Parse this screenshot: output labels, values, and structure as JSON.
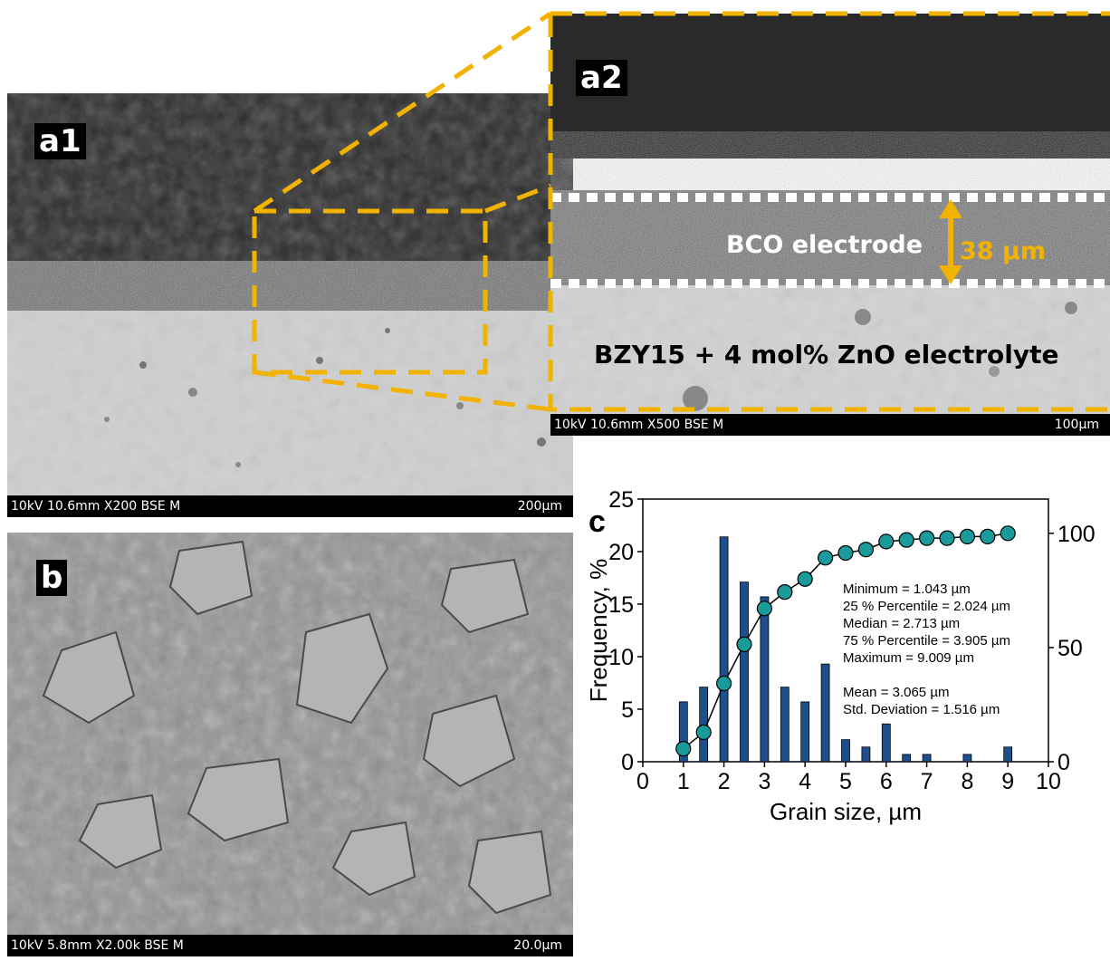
{
  "panel_a1": {
    "label": "a1",
    "info": "10kV 10.6mm X200 BSE M",
    "scale": "200µm"
  },
  "panel_a2": {
    "label": "a2",
    "info": "10kV 10.6mm X500 BSE M",
    "scale": "100µm",
    "electrode_label": "BCO electrode",
    "thickness_label": "38 µm",
    "electrolyte_label": "BZY15 + 4 mol% ZnO electrolyte"
  },
  "panel_b": {
    "label": "b",
    "info": "10kV 5.8mm X2.00k BSE M",
    "scale": "20.0µm"
  },
  "colors": {
    "accent_orange": "#f2b300",
    "bar_blue": "#1f4e8c",
    "marker_teal": "#1a9a9a"
  },
  "chart_data": {
    "type": "bar",
    "label": "c",
    "xlabel": "Grain size, µm",
    "ylabel": "Frequency, %",
    "xlim": [
      0,
      10
    ],
    "ylim": [
      0,
      25
    ],
    "x_ticks": [
      "0",
      "1",
      "2",
      "3",
      "4",
      "5",
      "6",
      "7",
      "8",
      "9",
      "10"
    ],
    "y_ticks": [
      "0",
      "5",
      "10",
      "15",
      "20",
      "25"
    ],
    "y2_ticks": [
      "0",
      "50",
      "100"
    ],
    "y2lim": [
      0,
      115
    ],
    "bars": {
      "x": [
        1.0,
        1.5,
        2.0,
        2.5,
        3.0,
        3.5,
        4.0,
        4.5,
        5.0,
        5.5,
        6.0,
        6.5,
        7.0,
        8.0,
        9.0
      ],
      "values": [
        5.7,
        7.1,
        21.4,
        17.1,
        15.7,
        7.1,
        5.7,
        9.3,
        2.1,
        1.4,
        3.6,
        0.7,
        0.7,
        0.7,
        1.4
      ]
    },
    "cumulative": {
      "x": [
        1.0,
        1.5,
        2.0,
        2.5,
        3.0,
        3.5,
        4.0,
        4.5,
        5.0,
        5.5,
        6.0,
        6.5,
        7.0,
        7.5,
        8.0,
        8.5,
        9.0
      ],
      "values": [
        5.7,
        12.9,
        34.3,
        51.4,
        67.1,
        74.3,
        80.0,
        89.3,
        91.4,
        92.9,
        96.4,
        97.1,
        97.9,
        97.9,
        98.6,
        98.6,
        100.0
      ]
    },
    "stats": [
      "Minimum = 1.043 µm",
      "25 % Percentile = 2.024 µm",
      "Median = 2.713 µm",
      "75 % Percentile = 3.905 µm",
      "Maximum = 9.009 µm",
      "",
      "Mean = 3.065 µm",
      "Std. Deviation = 1.516 µm"
    ]
  }
}
